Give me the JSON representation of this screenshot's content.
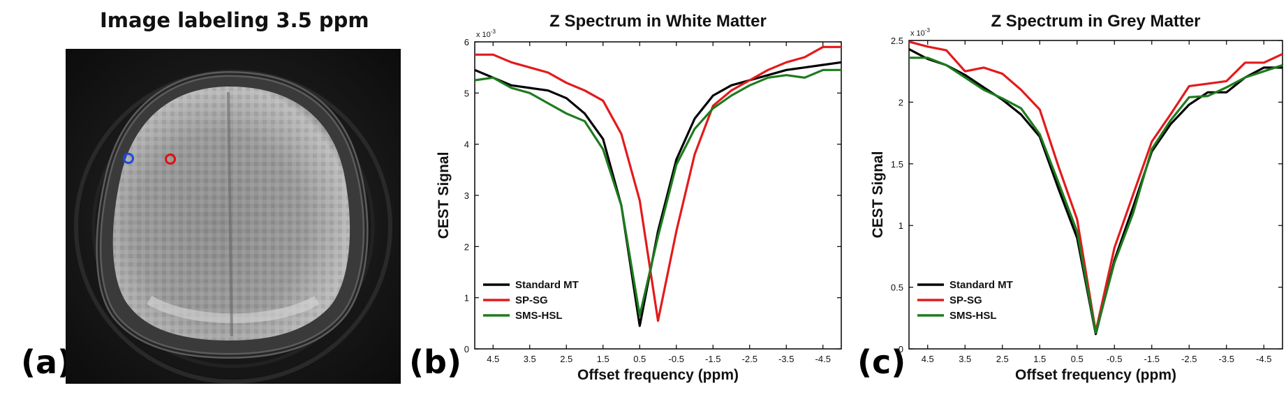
{
  "panel_a": {
    "letter": "(a)",
    "title": "Image labeling 3.5 ppm",
    "roi_colors": {
      "white_matter": "#e01010",
      "grey_matter": "#1a4ae0"
    }
  },
  "chart_data": [
    {
      "panel": "(b)",
      "type": "line",
      "title": "Z Spectrum in White Matter",
      "xlabel": "Offset frequency (ppm)",
      "ylabel": "CEST Signal",
      "y_exponent": "x 10",
      "y_exponent_power": "-3",
      "xlim": [
        5,
        -5
      ],
      "ylim": [
        0,
        6
      ],
      "x_ticks": [
        4.5,
        3.5,
        2.5,
        1.5,
        0.5,
        -0.5,
        -1.5,
        -2.5,
        -3.5,
        -4.5
      ],
      "x_tick_labels": [
        "4.5",
        "3.5",
        "2.5",
        "1.5",
        "0.5",
        "-0.5",
        "-1.5",
        "-2.5",
        "-3.5",
        "-4.5"
      ],
      "y_ticks": [
        0,
        1,
        2,
        3,
        4,
        5,
        6
      ],
      "y_tick_labels": [
        "0",
        "1",
        "2",
        "3",
        "4",
        "5",
        "6"
      ],
      "legend_position": "bottom-left",
      "x": [
        5,
        4.5,
        4,
        3.5,
        3,
        2.5,
        2,
        1.5,
        1,
        0.5,
        0,
        -0.5,
        -1,
        -1.5,
        -2,
        -2.5,
        -3,
        -3.5,
        -4,
        -4.5,
        -5
      ],
      "series": [
        {
          "name": "Standard MT",
          "color": "#000000",
          "values": [
            5.45,
            5.3,
            5.15,
            5.1,
            5.05,
            4.9,
            4.6,
            4.1,
            2.8,
            0.45,
            2.3,
            3.7,
            4.5,
            4.95,
            5.15,
            5.25,
            5.35,
            5.45,
            5.5,
            5.55,
            5.6
          ]
        },
        {
          "name": "SP-SG",
          "color": "#e31a1c",
          "values": [
            5.75,
            5.75,
            5.6,
            5.5,
            5.4,
            5.2,
            5.05,
            4.85,
            4.2,
            2.9,
            0.55,
            2.3,
            3.8,
            4.75,
            5.05,
            5.25,
            5.45,
            5.6,
            5.7,
            5.9,
            5.9
          ]
        },
        {
          "name": "SMS-HSL",
          "color": "#1e7b1e",
          "values": [
            5.25,
            5.3,
            5.1,
            5.0,
            4.8,
            4.6,
            4.45,
            3.9,
            2.8,
            0.65,
            2.2,
            3.6,
            4.3,
            4.7,
            4.95,
            5.15,
            5.3,
            5.35,
            5.3,
            5.45,
            5.45
          ]
        }
      ]
    },
    {
      "panel": "(c)",
      "type": "line",
      "title": "Z Spectrum in Grey Matter",
      "xlabel": "Offset frequency (ppm)",
      "ylabel": "CEST Signal",
      "y_exponent": "x 10",
      "y_exponent_power": "-3",
      "xlim": [
        5,
        -5
      ],
      "ylim": [
        0,
        2.5
      ],
      "x_ticks": [
        4.5,
        3.5,
        2.5,
        1.5,
        0.5,
        -0.5,
        -1.5,
        -2.5,
        -3.5,
        -4.5
      ],
      "x_tick_labels": [
        "4.5",
        "3.5",
        "2.5",
        "1.5",
        "0.5",
        "-0.5",
        "-1.5",
        "-2.5",
        "-3.5",
        "-4.5"
      ],
      "y_ticks": [
        0,
        0.5,
        1,
        1.5,
        2,
        2.5
      ],
      "y_tick_labels": [
        "0",
        "0.5",
        "1",
        "1.5",
        "2",
        "2.5"
      ],
      "legend_position": "bottom-left",
      "x": [
        5,
        4.5,
        4,
        3.5,
        3,
        2.5,
        2,
        1.5,
        1,
        0.5,
        0,
        -0.5,
        -1,
        -1.5,
        -2,
        -2.5,
        -3,
        -3.5,
        -4,
        -4.5,
        -5
      ],
      "series": [
        {
          "name": "Standard MT",
          "color": "#000000",
          "values": [
            2.43,
            2.35,
            2.3,
            2.22,
            2.12,
            2.02,
            1.9,
            1.72,
            1.3,
            0.9,
            0.12,
            0.72,
            1.15,
            1.6,
            1.82,
            1.98,
            2.08,
            2.08,
            2.2,
            2.28,
            2.28
          ]
        },
        {
          "name": "SP-SG",
          "color": "#e31a1c",
          "values": [
            2.49,
            2.45,
            2.42,
            2.25,
            2.28,
            2.23,
            2.1,
            1.94,
            1.48,
            1.05,
            0.14,
            0.82,
            1.25,
            1.68,
            1.9,
            2.13,
            2.15,
            2.17,
            2.32,
            2.32,
            2.39
          ]
        },
        {
          "name": "SMS-HSL",
          "color": "#1e7b1e",
          "values": [
            2.36,
            2.36,
            2.3,
            2.2,
            2.1,
            2.03,
            1.95,
            1.74,
            1.35,
            0.95,
            0.13,
            0.7,
            1.1,
            1.62,
            1.85,
            2.04,
            2.05,
            2.12,
            2.2,
            2.25,
            2.3
          ]
        }
      ]
    }
  ]
}
